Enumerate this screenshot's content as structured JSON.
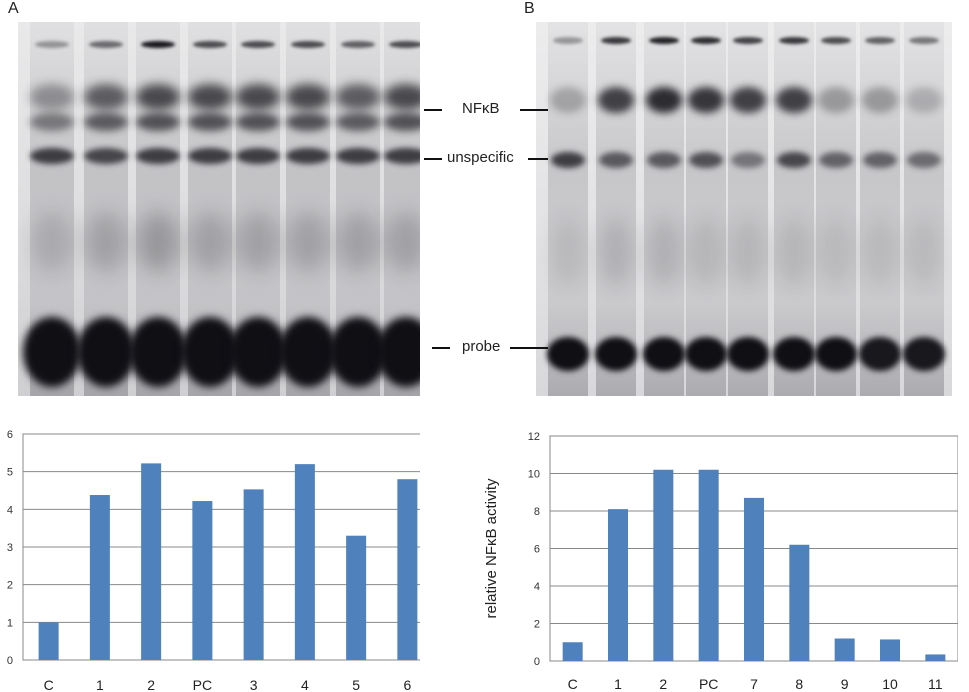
{
  "panels": {
    "a_letter": "A",
    "b_letter": "B"
  },
  "gel_labels": {
    "nfkb": "NFκB",
    "unspecific": "unspecific",
    "probe": "probe"
  },
  "chart_data": [
    {
      "type": "bar",
      "panel": "A",
      "categories": [
        "C",
        "1",
        "2",
        "PC",
        "3",
        "4",
        "5",
        "6"
      ],
      "values": [
        1.0,
        4.38,
        5.22,
        4.22,
        4.53,
        5.2,
        3.3,
        4.8
      ],
      "ylim": [
        0,
        6
      ],
      "yticks": [
        0,
        1,
        2,
        3,
        4,
        5,
        6
      ],
      "ylabel": "",
      "xlabel": "",
      "title": "",
      "grid": true,
      "bar_color": "#4f81bd"
    },
    {
      "type": "bar",
      "panel": "B",
      "categories": [
        "C",
        "1",
        "2",
        "PC",
        "7",
        "8",
        "9",
        "10",
        "11"
      ],
      "values": [
        1.0,
        8.1,
        10.2,
        10.2,
        8.7,
        6.2,
        1.2,
        1.15,
        0.35
      ],
      "ylim": [
        0,
        12
      ],
      "yticks": [
        0,
        2,
        4,
        6,
        8,
        10,
        12
      ],
      "ylabel": "relative NFκB activity",
      "xlabel": "",
      "title": "",
      "grid": true,
      "bar_color": "#4f81bd"
    }
  ]
}
